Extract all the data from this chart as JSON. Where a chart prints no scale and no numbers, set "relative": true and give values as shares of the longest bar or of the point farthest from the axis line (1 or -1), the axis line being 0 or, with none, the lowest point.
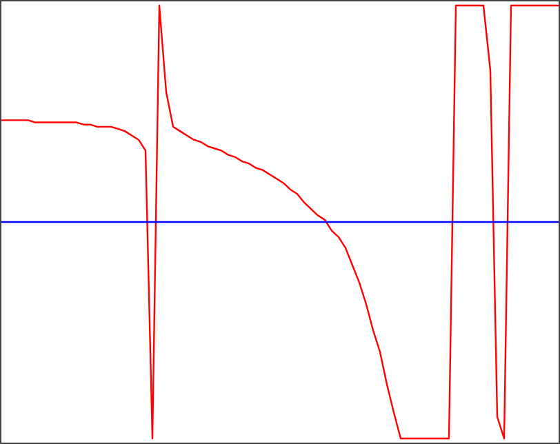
{
  "chart_data": {
    "type": "line",
    "relative": true,
    "categories": [
      null,
      null,
      null,
      null,
      null,
      null,
      null,
      null,
      null,
      null,
      null,
      null,
      null,
      null,
      null,
      null,
      null,
      null,
      null,
      null,
      null,
      null,
      null,
      null,
      null,
      null,
      null,
      null,
      null,
      null,
      null,
      null,
      null,
      null,
      null,
      null,
      null,
      null,
      null,
      null,
      null,
      null,
      null,
      null,
      null,
      null,
      null,
      null,
      null,
      null,
      null,
      null,
      null,
      null,
      null,
      null,
      null,
      null,
      null,
      null,
      null,
      null,
      null,
      null,
      null,
      null,
      null,
      null,
      null,
      null,
      null,
      null,
      null,
      null,
      null,
      null,
      null,
      null,
      null,
      null,
      null,
      null
    ],
    "series": [
      {
        "color": "#ff0000",
        "values": [
          0.735,
          0.735,
          0.735,
          0.735,
          0.735,
          0.73,
          0.73,
          0.73,
          0.73,
          0.73,
          0.73,
          0.73,
          0.725,
          0.725,
          0.72,
          0.72,
          0.72,
          0.715,
          0.71,
          0.7,
          0.69,
          0.665,
          0,
          1,
          0.8,
          0.72,
          0.71,
          0.7,
          0.69,
          0.685,
          0.675,
          0.67,
          0.665,
          0.655,
          0.65,
          0.64,
          0.635,
          0.625,
          0.62,
          0.61,
          0.6,
          0.59,
          0.575,
          0.565,
          0.545,
          0.53,
          0.515,
          0.505,
          0.48,
          0.465,
          0.44,
          0.4,
          0.36,
          0.31,
          0.25,
          0.2,
          0.125,
          0.06,
          0,
          0,
          0,
          0,
          0,
          0,
          0,
          0,
          1,
          1,
          1,
          1,
          1,
          0.85,
          0.05,
          0,
          1,
          1,
          1,
          1,
          1,
          1,
          1,
          1
        ]
      },
      {
        "color": "#0000ff",
        "values": [
          0.5,
          0.5,
          0.5,
          0.5,
          0.5,
          0.5,
          0.5,
          0.5,
          0.5,
          0.5,
          0.5,
          0.5,
          0.5,
          0.5,
          0.5,
          0.5,
          0.5,
          0.5,
          0.5,
          0.5,
          0.5,
          0.5,
          0.5,
          0.5,
          0.5,
          0.5,
          0.5,
          0.5,
          0.5,
          0.5,
          0.5,
          0.5,
          0.5,
          0.5,
          0.5,
          0.5,
          0.5,
          0.5,
          0.5,
          0.5,
          0.5,
          0.5,
          0.5,
          0.5,
          0.5,
          0.5,
          0.5,
          0.5,
          0.5,
          0.5,
          0.5,
          0.5,
          0.5,
          0.5,
          0.5,
          0.5,
          0.5,
          0.5,
          0.5,
          0.5,
          0.5,
          0.5,
          0.5,
          0.5,
          0.5,
          0.5,
          0.5,
          0.5,
          0.5,
          0.5,
          0.5,
          0.5,
          0.5,
          0.5,
          0.5,
          0.5,
          0.5,
          0.5,
          0.5,
          0.5,
          0.5,
          0.5
        ]
      }
    ]
  }
}
